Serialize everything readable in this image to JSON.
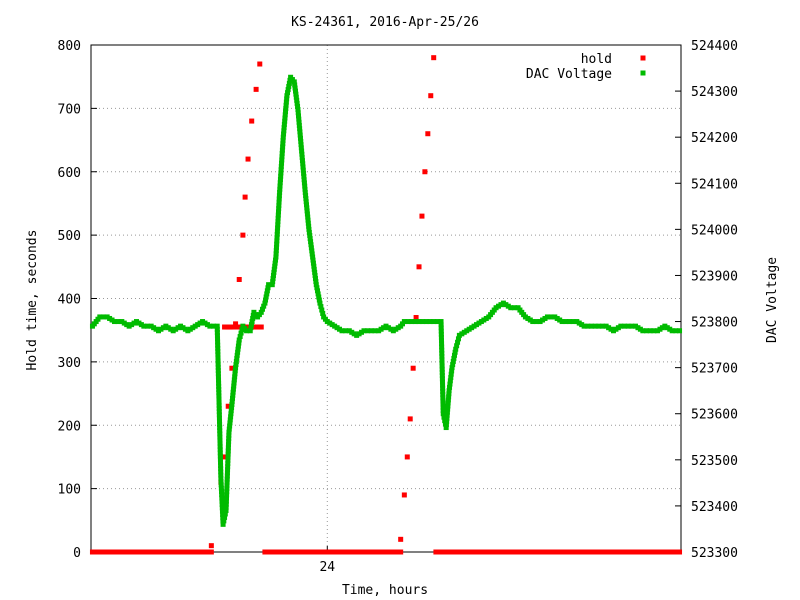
{
  "chart_data": {
    "type": "scatter",
    "title": "KS-24361, 2016-Apr-25/26",
    "xlabel": "Time, hours",
    "ylabel": "Hold time, seconds",
    "y2label": "DAC Voltage",
    "xlim": [
      20.78,
      28.82
    ],
    "ylim": [
      0,
      800
    ],
    "y2lim": [
      523300,
      524400
    ],
    "x_ticks": [
      24
    ],
    "x_tick_labels": [
      "24"
    ],
    "y_ticks": [
      0,
      100,
      200,
      300,
      400,
      500,
      600,
      700,
      800
    ],
    "y2_ticks": [
      523300,
      523400,
      523500,
      523600,
      523700,
      523800,
      523900,
      524000,
      524100,
      524200,
      524300,
      524400
    ],
    "grid": true,
    "legend_position": "top-right",
    "series": [
      {
        "name": "hold",
        "color": "#ff0000",
        "axis": "left",
        "segments": [
          {
            "x": [
              20.8,
              22.42
            ],
            "y": [
              0,
              0
            ],
            "n": 80
          },
          {
            "x": [
              22.42,
              22.55,
              22.6,
              22.65,
              22.7,
              22.75,
              22.8,
              22.85,
              22.88,
              22.92,
              22.97,
              23.03,
              23.08
            ],
            "y": [
              10,
              110,
              150,
              230,
              290,
              360,
              430,
              500,
              560,
              620,
              680,
              730,
              770
            ]
          },
          {
            "x": [
              22.6,
              22.72
            ],
            "y": [
              355,
              355
            ],
            "n": 8
          },
          {
            "x": [
              22.0,
              22.6
            ],
            "y": [
              350,
              350
            ],
            "n": 0
          },
          {
            "x": [
              22.78,
              23.1
            ],
            "y": [
              355,
              355
            ],
            "n": 12
          },
          {
            "x": [
              23.15,
              25.0
            ],
            "y": [
              0,
              0
            ],
            "n": 95
          },
          {
            "x": [
              25.0,
              25.05,
              25.09,
              25.13,
              25.17,
              25.21,
              25.25,
              25.29,
              25.33,
              25.37,
              25.41,
              25.45
            ],
            "y": [
              20,
              90,
              150,
              210,
              290,
              370,
              450,
              530,
              600,
              660,
              720,
              780
            ]
          },
          {
            "x": [
              25.48,
              28.8
            ],
            "y": [
              0,
              0
            ],
            "n": 160
          }
        ]
      },
      {
        "name": "DAC Voltage",
        "color": "#00bb00",
        "axis": "right",
        "x": [
          20.8,
          20.9,
          21.0,
          21.1,
          21.2,
          21.3,
          21.4,
          21.5,
          21.6,
          21.7,
          21.8,
          21.9,
          22.0,
          22.1,
          22.2,
          22.3,
          22.4,
          22.5,
          22.55,
          22.58,
          22.62,
          22.66,
          22.7,
          22.75,
          22.8,
          22.85,
          22.9,
          22.95,
          23.0,
          23.05,
          23.1,
          23.15,
          23.2,
          23.25,
          23.3,
          23.35,
          23.4,
          23.45,
          23.5,
          23.55,
          23.6,
          23.65,
          23.7,
          23.75,
          23.8,
          23.85,
          23.9,
          23.95,
          24.0,
          24.1,
          24.2,
          24.3,
          24.4,
          24.5,
          24.6,
          24.7,
          24.8,
          24.9,
          25.0,
          25.05,
          25.1,
          25.15,
          25.2,
          25.3,
          25.4,
          25.5,
          25.55,
          25.58,
          25.62,
          25.66,
          25.7,
          25.75,
          25.8,
          25.9,
          26.0,
          26.1,
          26.2,
          26.3,
          26.4,
          26.5,
          26.6,
          26.7,
          26.8,
          26.9,
          27.0,
          27.1,
          27.2,
          27.3,
          27.4,
          27.5,
          27.6,
          27.7,
          27.8,
          27.9,
          28.0,
          28.1,
          28.2,
          28.3,
          28.4,
          28.5,
          28.6,
          28.7,
          28.8
        ],
        "y": [
          523790,
          523810,
          523810,
          523800,
          523800,
          523790,
          523800,
          523790,
          523790,
          523780,
          523790,
          523780,
          523790,
          523780,
          523790,
          523800,
          523790,
          523790,
          523460,
          523360,
          523390,
          523560,
          523620,
          523700,
          523760,
          523790,
          523780,
          523780,
          523820,
          523810,
          523820,
          523840,
          523880,
          523880,
          523940,
          524080,
          524200,
          524290,
          524330,
          524320,
          524260,
          524170,
          524080,
          524000,
          523940,
          523880,
          523840,
          523810,
          523800,
          523790,
          523780,
          523780,
          523770,
          523780,
          523780,
          523780,
          523790,
          523780,
          523790,
          523800,
          523800,
          523800,
          523800,
          523800,
          523800,
          523800,
          523800,
          523600,
          523570,
          523650,
          523700,
          523740,
          523770,
          523780,
          523790,
          523800,
          523810,
          523830,
          523840,
          523830,
          523830,
          523810,
          523800,
          523800,
          523810,
          523810,
          523800,
          523800,
          523800,
          523790,
          523790,
          523790,
          523790,
          523780,
          523790,
          523790,
          523790,
          523780,
          523780,
          523780,
          523790,
          523780,
          523780
        ]
      }
    ]
  }
}
